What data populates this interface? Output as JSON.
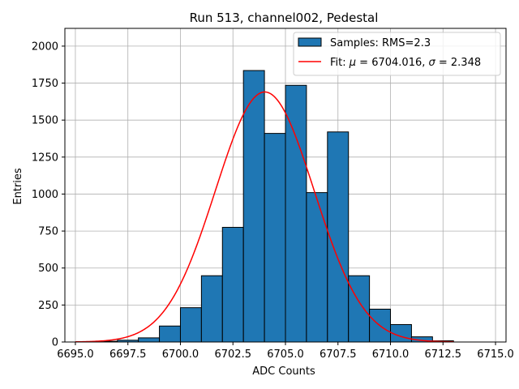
{
  "chart_data": {
    "type": "bar",
    "title": "Run 513, channel002, Pedestal",
    "xlabel": "ADC Counts",
    "ylabel": "Entries",
    "xlim": [
      6694.5,
      6715.5
    ],
    "ylim": [
      0,
      2120
    ],
    "xticks": [
      6695.0,
      6697.5,
      6700.0,
      6702.5,
      6705.0,
      6707.5,
      6710.0,
      6712.5,
      6715.0
    ],
    "xtick_labels": [
      "6695.0",
      "6697.5",
      "6700.0",
      "6702.5",
      "6705.0",
      "6707.5",
      "6710.0",
      "6712.5",
      "6715.0"
    ],
    "yticks": [
      0,
      250,
      500,
      750,
      1000,
      1250,
      1500,
      1750,
      2000
    ],
    "ytick_labels": [
      "0",
      "250",
      "500",
      "750",
      "1000",
      "1250",
      "1500",
      "1750",
      "2000"
    ],
    "grid": true,
    "legend_position": "top-right",
    "histogram": {
      "name": "Samples: RMS=2.3",
      "color": "#1f77b4",
      "edge_color": "#000000",
      "bin_edges": [
        6696,
        6697,
        6698,
        6699,
        6700,
        6701,
        6702,
        6703,
        6704,
        6705,
        6706,
        6707,
        6708,
        6709,
        6710,
        6711,
        6712,
        6713
      ],
      "counts": [
        5,
        12,
        28,
        108,
        232,
        448,
        775,
        1835,
        1410,
        1735,
        1010,
        1420,
        448,
        222,
        118,
        35,
        8
      ]
    },
    "fit": {
      "name": "Fit: μ = 6704.016, σ = 2.348",
      "label_prefix": "Fit: ",
      "mu_symbol": "μ",
      "mu_text": " = 6704.016, ",
      "sigma_symbol": "σ",
      "sigma_text": " = 2.348",
      "color": "#ff0000",
      "mu": 6704.016,
      "sigma": 2.348,
      "amplitude": 1690,
      "x_range": [
        6695.0,
        6713.0
      ]
    }
  }
}
